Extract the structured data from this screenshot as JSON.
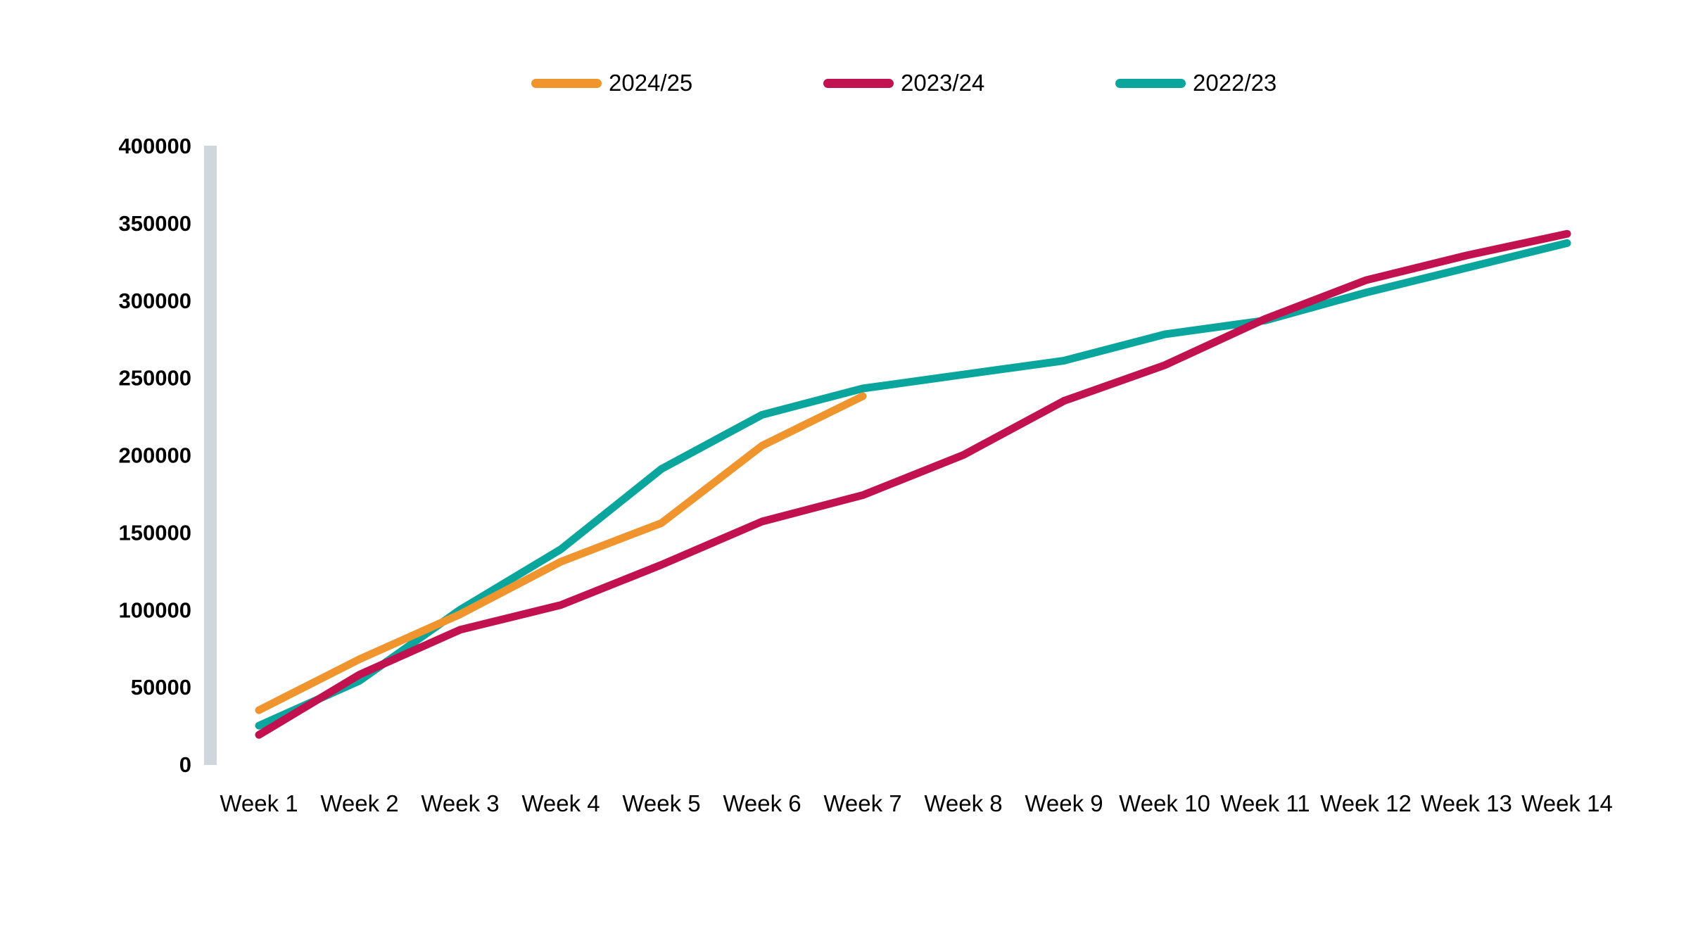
{
  "chart_data": {
    "type": "line",
    "title": "",
    "xlabel": "",
    "ylabel": "",
    "categories": [
      "Week 1",
      "Week 2",
      "Week 3",
      "Week 4",
      "Week 5",
      "Week 6",
      "Week 7",
      "Week 8",
      "Week 9",
      "Week 10",
      "Week 11",
      "Week 12",
      "Week 13",
      "Week 14"
    ],
    "series": [
      {
        "name": "2024/25",
        "color": "#F0942D",
        "values": [
          35000,
          68000,
          97000,
          131000,
          156000,
          206000,
          238000
        ]
      },
      {
        "name": "2023/24",
        "color": "#C1114E",
        "values": [
          19000,
          58000,
          87000,
          103000,
          129000,
          157000,
          174000,
          200000,
          235000,
          258000,
          288000,
          313000,
          329000,
          343000
        ]
      },
      {
        "name": "2022/23",
        "color": "#0AA69D",
        "values": [
          25000,
          54000,
          100000,
          139000,
          191000,
          226000,
          243000,
          252000,
          261000,
          278000,
          287000,
          305000,
          321000,
          337000
        ]
      }
    ],
    "ylim": [
      0,
      400000
    ],
    "ytick_step": 50000,
    "y_tick_labels": [
      "0",
      "50000",
      "100000",
      "150000",
      "200000",
      "250000",
      "300000",
      "350000",
      "400000"
    ],
    "grid": false,
    "legend_position": "top",
    "axis_bar_color": "#CFD6DD",
    "text_color": "#000000",
    "background_color": "#FFFFFF"
  }
}
